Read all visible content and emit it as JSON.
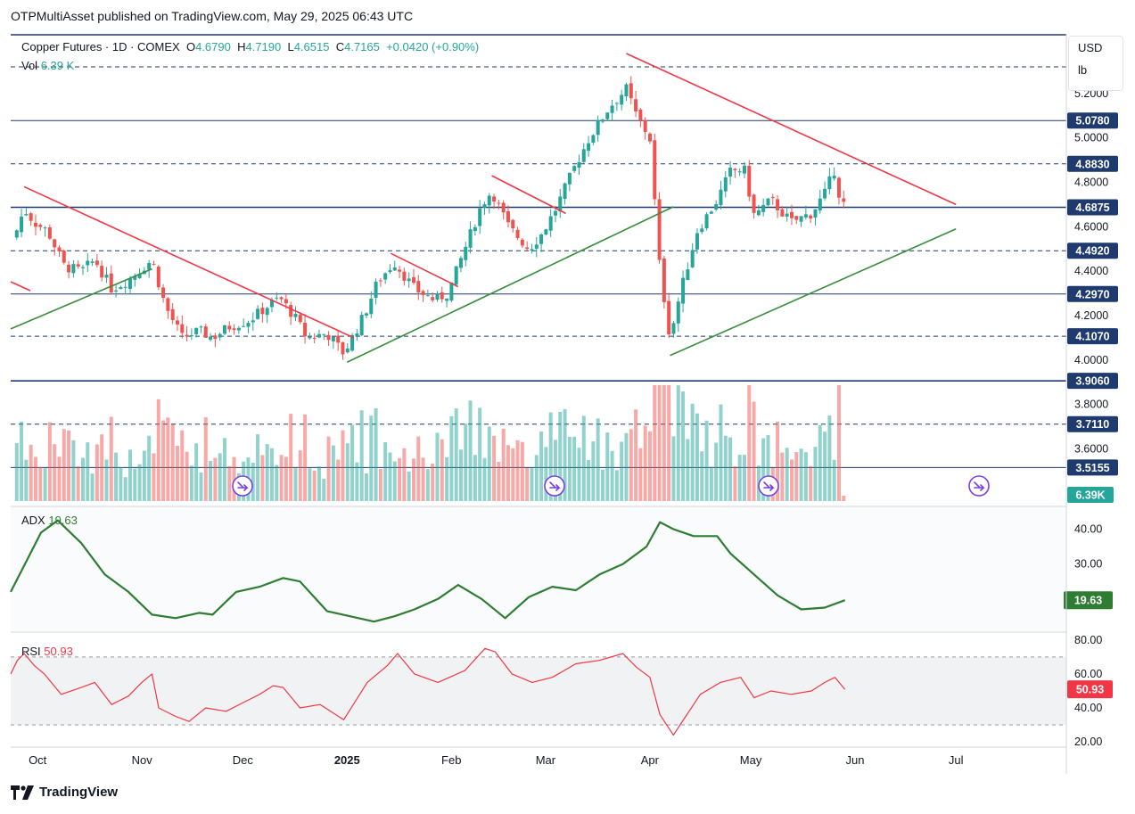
{
  "header": {
    "published": "OTPMultiAsset published on TradingView.com, May 29, 2025 06:43 UTC"
  },
  "legend": {
    "title": "Copper Futures · 1D · COMEX",
    "open_label": "O",
    "open": "4.6790",
    "high_label": "H",
    "high": "4.7190",
    "low_label": "L",
    "low": "4.6515",
    "close_label": "C",
    "close": "4.7165",
    "change": "+0.0420 (+0.90%)",
    "vol_label": "Vol",
    "vol": "6.39 K"
  },
  "units": {
    "currency": "USD",
    "unit": "lb"
  },
  "footer": {
    "brand": "TradingView"
  },
  "colors": {
    "up": "#26a69a",
    "down": "#ef5350",
    "blue": "#1e3a6e",
    "adx": "#2e7d32",
    "rsi": "#f23645",
    "trend_red": "#f23645",
    "trend_green": "#388e3c"
  },
  "chart_data": [
    {
      "type": "candlestick",
      "title": "Copper Futures · 1D · COMEX",
      "ylim": [
        3.45,
        5.39
      ],
      "yticks": [
        5.2,
        5.0,
        4.8,
        4.6,
        4.4,
        4.2,
        4.0,
        3.8,
        3.6
      ],
      "x_ticks": [
        "Oct",
        "Nov",
        "Dec",
        "2025",
        "Feb",
        "Mar",
        "Apr",
        "May",
        "Jun",
        "Jul"
      ],
      "price_levels": [
        {
          "value": 5.078,
          "label": "5.0780",
          "style": "solid"
        },
        {
          "value": 4.883,
          "label": "4.8830",
          "style": "dashed"
        },
        {
          "value": 4.6875,
          "label": "4.6875",
          "style": "solid"
        },
        {
          "value": 4.492,
          "label": "4.4920",
          "style": "dashed"
        },
        {
          "value": 4.297,
          "label": "4.2970",
          "style": "solid"
        },
        {
          "value": 4.107,
          "label": "4.1070",
          "style": "dashed"
        },
        {
          "value": 3.906,
          "label": "3.9060",
          "style": "solid"
        },
        {
          "value": 3.711,
          "label": "3.7110",
          "style": "dashed"
        },
        {
          "value": 3.5155,
          "label": "3.5155",
          "style": "solid"
        },
        {
          "value": 5.32,
          "style": "dashed"
        }
      ],
      "close_path": [
        [
          "2024-09-24",
          4.55
        ],
        [
          "2024-09-27",
          4.68
        ],
        [
          "2024-09-30",
          4.62
        ],
        [
          "2024-10-04",
          4.58
        ],
        [
          "2024-10-09",
          4.42
        ],
        [
          "2024-10-14",
          4.4
        ],
        [
          "2024-10-18",
          4.45
        ],
        [
          "2024-10-23",
          4.32
        ],
        [
          "2024-10-28",
          4.36
        ],
        [
          "2024-10-31",
          4.4
        ],
        [
          "2024-11-04",
          4.45
        ],
        [
          "2024-11-08",
          4.24
        ],
        [
          "2024-11-13",
          4.1
        ],
        [
          "2024-11-18",
          4.13
        ],
        [
          "2024-11-22",
          4.1
        ],
        [
          "2024-11-27",
          4.15
        ],
        [
          "2024-12-03",
          4.18
        ],
        [
          "2024-12-09",
          4.25
        ],
        [
          "2024-12-12",
          4.28
        ],
        [
          "2024-12-17",
          4.18
        ],
        [
          "2024-12-20",
          4.1
        ],
        [
          "2024-12-26",
          4.12
        ],
        [
          "2024-12-31",
          4.03
        ],
        [
          "2025-01-06",
          4.2
        ],
        [
          "2025-01-10",
          4.35
        ],
        [
          "2025-01-15",
          4.44
        ],
        [
          "2025-01-21",
          4.32
        ],
        [
          "2025-01-27",
          4.27
        ],
        [
          "2025-01-31",
          4.3
        ],
        [
          "2025-02-05",
          4.5
        ],
        [
          "2025-02-10",
          4.7
        ],
        [
          "2025-02-13",
          4.76
        ],
        [
          "2025-02-18",
          4.6
        ],
        [
          "2025-02-24",
          4.5
        ],
        [
          "2025-02-28",
          4.57
        ],
        [
          "2025-03-04",
          4.68
        ],
        [
          "2025-03-10",
          4.88
        ],
        [
          "2025-03-14",
          5.0
        ],
        [
          "2025-03-20",
          5.14
        ],
        [
          "2025-03-25",
          5.22
        ],
        [
          "2025-03-28",
          5.1
        ],
        [
          "2025-04-01",
          5.0
        ],
        [
          "2025-04-04",
          4.4
        ],
        [
          "2025-04-07",
          4.1
        ],
        [
          "2025-04-10",
          4.3
        ],
        [
          "2025-04-15",
          4.58
        ],
        [
          "2025-04-21",
          4.72
        ],
        [
          "2025-04-25",
          4.85
        ],
        [
          "2025-04-29",
          4.86
        ],
        [
          "2025-05-02",
          4.65
        ],
        [
          "2025-05-07",
          4.72
        ],
        [
          "2025-05-13",
          4.62
        ],
        [
          "2025-05-19",
          4.66
        ],
        [
          "2025-05-23",
          4.75
        ],
        [
          "2025-05-26",
          4.86
        ],
        [
          "2025-05-28",
          4.68
        ],
        [
          "2025-05-29",
          4.7165
        ]
      ],
      "trendlines": [
        {
          "color": "red",
          "from": [
            "2024-09-27",
            4.78
          ],
          "to": [
            "2025-01-03",
            4.1
          ]
        },
        {
          "color": "red",
          "from": [
            "2025-01-14",
            4.48
          ],
          "to": [
            "2025-02-03",
            4.33
          ]
        },
        {
          "color": "red",
          "from": [
            "2025-02-13",
            4.83
          ],
          "to": [
            "2025-03-07",
            4.66
          ]
        },
        {
          "color": "red",
          "from": [
            "2025-03-25",
            5.38
          ],
          "to": [
            "2025-07-01",
            4.7
          ]
        },
        {
          "color": "green",
          "from": [
            "2024-09-23",
            4.14
          ],
          "to": [
            "2024-11-04",
            4.41
          ]
        },
        {
          "color": "green",
          "from": [
            "2025-01-01",
            3.99
          ],
          "to": [
            "2025-04-08",
            4.69
          ]
        },
        {
          "color": "green",
          "from": [
            "2025-04-07",
            4.02
          ],
          "to": [
            "2025-07-01",
            4.59
          ]
        }
      ]
    },
    {
      "type": "bar",
      "title": "Vol",
      "series_name": "Vol",
      "last_value": "6.39 K",
      "last_label": "6.39K"
    },
    {
      "type": "line",
      "title": "ADX",
      "last_value": "19.63",
      "ylim": [
        11.5,
        45.5
      ],
      "yticks": [
        40,
        30
      ],
      "ytick_labels": [
        "40.00",
        "30.00"
      ],
      "points": [
        [
          "2024-09-23",
          22
        ],
        [
          "2024-10-02",
          39
        ],
        [
          "2024-10-07",
          42.5
        ],
        [
          "2024-10-14",
          36
        ],
        [
          "2024-10-21",
          27
        ],
        [
          "2024-10-28",
          22
        ],
        [
          "2024-11-04",
          15.5
        ],
        [
          "2024-11-11",
          14.5
        ],
        [
          "2024-11-18",
          16
        ],
        [
          "2024-11-22",
          15.5
        ],
        [
          "2024-11-29",
          22
        ],
        [
          "2024-12-06",
          23.5
        ],
        [
          "2024-12-13",
          26
        ],
        [
          "2024-12-18",
          25
        ],
        [
          "2024-12-26",
          16.5
        ],
        [
          "2025-01-02",
          15
        ],
        [
          "2025-01-09",
          13.5
        ],
        [
          "2025-01-15",
          15
        ],
        [
          "2025-01-21",
          17
        ],
        [
          "2025-01-28",
          20
        ],
        [
          "2025-02-03",
          24
        ],
        [
          "2025-02-10",
          20
        ],
        [
          "2025-02-17",
          14.5
        ],
        [
          "2025-02-24",
          20.5
        ],
        [
          "2025-03-03",
          23.5
        ],
        [
          "2025-03-10",
          22.5
        ],
        [
          "2025-03-17",
          27
        ],
        [
          "2025-03-24",
          30
        ],
        [
          "2025-03-31",
          35
        ],
        [
          "2025-04-04",
          42
        ],
        [
          "2025-04-08",
          40
        ],
        [
          "2025-04-14",
          38
        ],
        [
          "2025-04-21",
          38
        ],
        [
          "2025-04-25",
          33
        ],
        [
          "2025-05-02",
          27
        ],
        [
          "2025-05-09",
          21
        ],
        [
          "2025-05-16",
          17
        ],
        [
          "2025-05-23",
          17.5
        ],
        [
          "2025-05-29",
          19.63
        ]
      ]
    },
    {
      "type": "line",
      "title": "RSI",
      "last_value": "50.93",
      "ylim": [
        19,
        82
      ],
      "yticks": [
        80,
        60,
        40,
        20
      ],
      "ytick_labels": [
        "80.00",
        "60.00",
        "40.00",
        "20.00"
      ],
      "bands": [
        70,
        30
      ],
      "points": [
        [
          "2024-09-23",
          60
        ],
        [
          "2024-09-25",
          68
        ],
        [
          "2024-09-27",
          72
        ],
        [
          "2024-09-30",
          65
        ],
        [
          "2024-10-03",
          60
        ],
        [
          "2024-10-08",
          48
        ],
        [
          "2024-10-14",
          52
        ],
        [
          "2024-10-18",
          55
        ],
        [
          "2024-10-23",
          42
        ],
        [
          "2024-10-28",
          47
        ],
        [
          "2024-11-01",
          55
        ],
        [
          "2024-11-04",
          60
        ],
        [
          "2024-11-06",
          40
        ],
        [
          "2024-11-11",
          35
        ],
        [
          "2024-11-15",
          32
        ],
        [
          "2024-11-20",
          40
        ],
        [
          "2024-11-26",
          38
        ],
        [
          "2024-12-02",
          44
        ],
        [
          "2024-12-06",
          48
        ],
        [
          "2024-12-10",
          53
        ],
        [
          "2024-12-13",
          52
        ],
        [
          "2024-12-18",
          40
        ],
        [
          "2024-12-24",
          42
        ],
        [
          "2024-12-31",
          33
        ],
        [
          "2025-01-07",
          55
        ],
        [
          "2025-01-13",
          65
        ],
        [
          "2025-01-16",
          72
        ],
        [
          "2025-01-21",
          60
        ],
        [
          "2025-01-28",
          55
        ],
        [
          "2025-02-05",
          62
        ],
        [
          "2025-02-11",
          75
        ],
        [
          "2025-02-14",
          73
        ],
        [
          "2025-02-19",
          60
        ],
        [
          "2025-02-25",
          55
        ],
        [
          "2025-03-03",
          58
        ],
        [
          "2025-03-10",
          66
        ],
        [
          "2025-03-17",
          68
        ],
        [
          "2025-03-24",
          72
        ],
        [
          "2025-03-28",
          64
        ],
        [
          "2025-04-01",
          58
        ],
        [
          "2025-04-04",
          36
        ],
        [
          "2025-04-08",
          24
        ],
        [
          "2025-04-10",
          30
        ],
        [
          "2025-04-16",
          48
        ],
        [
          "2025-04-22",
          55
        ],
        [
          "2025-04-28",
          58
        ],
        [
          "2025-05-02",
          46
        ],
        [
          "2025-05-07",
          50
        ],
        [
          "2025-05-13",
          48
        ],
        [
          "2025-05-19",
          50
        ],
        [
          "2025-05-23",
          55
        ],
        [
          "2025-05-26",
          58
        ],
        [
          "2025-05-29",
          50.93
        ]
      ]
    }
  ]
}
